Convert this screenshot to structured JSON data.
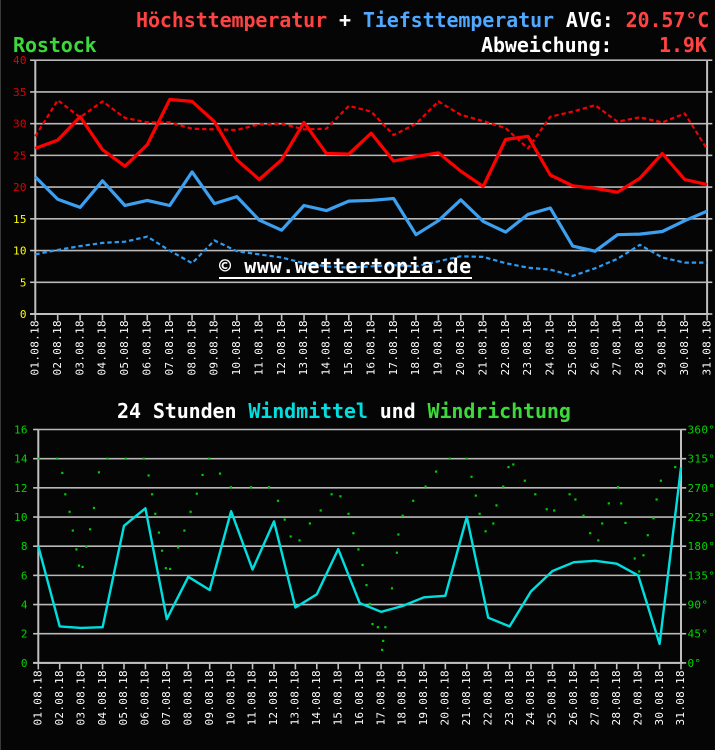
{
  "station": "Rostock",
  "header": {
    "line1": {
      "max_label": "Höchsttemperatur",
      "plus": " + ",
      "min_label": "Tiefsttemperatur",
      "avg_label": " AVG: ",
      "avg_value": "20.57°C"
    },
    "line2": {
      "dev_label": "Abweichung:",
      "dev_value": "1.9K"
    }
  },
  "watermark": "© www.wettertopia.de",
  "colors": {
    "background": "#050505",
    "grid": "#b8b8b8",
    "axis": "#c0c0c0",
    "max_line": "#ff0000",
    "max_dashed_line": "#f40000",
    "min_line": "#3ca0f0",
    "min_dashed_line": "#2e9bf2",
    "wind_line": "#00dfdf",
    "direction_dots": "#00cc00",
    "ylabel_red": "#e00000",
    "ylabel_yellow": "#ffff00",
    "ylabel_green": "#00d400",
    "xlabel_white": "#ffffff",
    "header_red": "#ff4343",
    "header_blue": "#51a8ff",
    "header_green": "#3cd83c",
    "header_cyan": "#00dfdf",
    "header_white": "#ffffff"
  },
  "chart_data": [
    {
      "type": "line",
      "title": "Höchsttemperatur + Tiefsttemperatur",
      "ylabel": "°C",
      "ylim": [
        0,
        40
      ],
      "ytick_step": 5,
      "ylabel_red_from": 20,
      "grid": true,
      "categories": [
        "01.08.18",
        "02.08.18",
        "03.08.18",
        "04.08.18",
        "05.08.18",
        "06.08.18",
        "07.08.18",
        "08.08.18",
        "09.08.18",
        "10.08.18",
        "11.08.18",
        "12.08.18",
        "13.08.18",
        "14.08.18",
        "15.08.18",
        "16.08.18",
        "17.08.18",
        "18.08.18",
        "19.08.18",
        "20.08.18",
        "21.08.18",
        "22.08.18",
        "23.08.18",
        "24.08.18",
        "25.08.18",
        "26.08.18",
        "27.08.18",
        "28.08.18",
        "29.08.18",
        "30.08.18",
        "31.08.18"
      ],
      "series": [
        {
          "name": "Höchsttemperatur",
          "style": "solid",
          "width": 3.2,
          "color": "#ff0000",
          "values": [
            26.1,
            27.4,
            31.1,
            25.9,
            23.3,
            26.7,
            33.8,
            33.5,
            30.3,
            24.3,
            21.2,
            24.3,
            30.2,
            25.3,
            25.2,
            28.5,
            24.1,
            24.8,
            25.4,
            22.5,
            20.1,
            27.5,
            28.0,
            21.9,
            20.2,
            19.8,
            19.2,
            21.4,
            25.3,
            21.2,
            20.4
          ]
        },
        {
          "name": "Höchsttemperatur Vergleich",
          "style": "dashed",
          "width": 2.2,
          "color": "#f40000",
          "values": [
            28.0,
            33.7,
            31.0,
            33.5,
            30.9,
            30.2,
            30.2,
            29.2,
            29.1,
            29.0,
            29.9,
            30.0,
            29.1,
            29.2,
            32.8,
            31.9,
            28.2,
            30.0,
            33.5,
            31.4,
            30.4,
            29.3,
            26.1,
            31.1,
            31.9,
            32.9,
            30.3,
            31.0,
            30.2,
            31.6,
            26.0
          ]
        },
        {
          "name": "Tiefsttemperatur",
          "style": "solid",
          "width": 3.2,
          "color": "#3ca0f0",
          "values": [
            21.6,
            18.1,
            16.8,
            21.0,
            17.1,
            17.9,
            17.1,
            22.4,
            17.4,
            18.5,
            14.8,
            13.2,
            17.1,
            16.3,
            17.8,
            17.9,
            18.2,
            12.5,
            14.7,
            18.0,
            14.6,
            12.9,
            15.7,
            16.7,
            10.7,
            9.9,
            12.5,
            12.6,
            13.0,
            14.7,
            16.2
          ]
        },
        {
          "name": "Tiefsttemperatur Vergleich",
          "style": "dashed",
          "width": 2.2,
          "color": "#2e9bf2",
          "values": [
            9.4,
            10.1,
            10.7,
            11.2,
            11.4,
            12.2,
            10.0,
            8.0,
            11.6,
            9.9,
            9.4,
            8.9,
            8.0,
            7.5,
            7.3,
            7.5,
            7.7,
            7.5,
            8.3,
            9.1,
            9.0,
            8.0,
            7.3,
            7.0,
            6.0,
            7.2,
            8.7,
            10.9,
            8.9,
            8.1,
            8.1
          ]
        }
      ]
    },
    {
      "type": "line+scatter",
      "title_parts": [
        {
          "text": "24 Stunden ",
          "color": "#ffffff"
        },
        {
          "text": "Windmittel",
          "color": "#00dfdf"
        },
        {
          "text": " und ",
          "color": "#ffffff"
        },
        {
          "text": "Windrichtung",
          "color": "#3cd83c"
        }
      ],
      "ylim_left": [
        0,
        16
      ],
      "ytick_step_left": 2,
      "ylim_right": [
        0,
        360
      ],
      "ytick_step_right": 45,
      "grid": true,
      "categories": [
        "01.08.18",
        "02.08.18",
        "03.08.18",
        "04.08.18",
        "05.08.18",
        "06.08.18",
        "07.08.18",
        "08.08.18",
        "09.08.18",
        "10.08.18",
        "11.08.18",
        "12.08.18",
        "13.08.18",
        "14.08.18",
        "15.08.18",
        "16.08.18",
        "17.08.18",
        "18.08.18",
        "19.08.18",
        "20.08.18",
        "21.08.18",
        "22.08.18",
        "23.08.18",
        "24.08.18",
        "25.08.18",
        "26.08.18",
        "27.08.18",
        "28.08.18",
        "29.08.18",
        "30.08.18",
        "31.08.18"
      ],
      "series": [
        {
          "name": "Windmittel",
          "style": "solid",
          "width": 2.4,
          "color": "#00dfdf",
          "values": [
            8.0,
            2.5,
            2.4,
            2.45,
            9.4,
            10.6,
            3.0,
            5.9,
            5.0,
            10.4,
            6.4,
            9.7,
            3.8,
            4.7,
            7.8,
            4.1,
            3.5,
            3.9,
            4.5,
            4.6,
            10.0,
            3.1,
            2.5,
            4.9,
            6.3,
            6.9,
            7.0,
            6.8,
            6.0,
            1.3,
            13.4
          ]
        }
      ],
      "scatter": {
        "name": "Windrichtung",
        "color": "#00cc00",
        "unit": "deg",
        "points": [
          [
            1.02,
            315
          ],
          [
            1.88,
            315
          ],
          [
            2.12,
            293
          ],
          [
            2.26,
            260
          ],
          [
            2.46,
            233
          ],
          [
            2.61,
            204
          ],
          [
            2.78,
            175
          ],
          [
            2.9,
            150
          ],
          [
            3.07,
            148
          ],
          [
            3.24,
            179
          ],
          [
            3.42,
            206
          ],
          [
            3.6,
            239
          ],
          [
            3.83,
            294
          ],
          [
            4.23,
            315
          ],
          [
            5.08,
            315
          ],
          [
            5.92,
            315
          ],
          [
            6.15,
            289
          ],
          [
            6.31,
            260
          ],
          [
            6.46,
            230
          ],
          [
            6.63,
            201
          ],
          [
            6.78,
            173
          ],
          [
            6.95,
            146
          ],
          [
            7.15,
            145
          ],
          [
            7.53,
            178
          ],
          [
            7.82,
            204
          ],
          [
            8.11,
            233
          ],
          [
            8.4,
            261
          ],
          [
            8.67,
            290
          ],
          [
            8.98,
            315
          ],
          [
            9.48,
            292
          ],
          [
            9.99,
            271
          ],
          [
            10.93,
            271
          ],
          [
            11.77,
            271
          ],
          [
            12.19,
            250
          ],
          [
            12.5,
            221
          ],
          [
            12.78,
            195
          ],
          [
            13.19,
            189
          ],
          [
            13.68,
            215
          ],
          [
            14.18,
            235
          ],
          [
            14.69,
            260
          ],
          [
            15.1,
            257
          ],
          [
            15.48,
            230
          ],
          [
            15.71,
            200
          ],
          [
            15.94,
            175
          ],
          [
            16.14,
            151
          ],
          [
            16.32,
            120
          ],
          [
            16.47,
            91
          ],
          [
            16.6,
            60
          ],
          [
            16.85,
            55
          ],
          [
            17.05,
            20
          ],
          [
            17.1,
            34
          ],
          [
            17.2,
            55
          ],
          [
            17.51,
            115
          ],
          [
            17.74,
            170
          ],
          [
            17.81,
            198
          ],
          [
            18.01,
            227
          ],
          [
            18.5,
            250
          ],
          [
            19.08,
            272
          ],
          [
            19.57,
            295
          ],
          [
            20.21,
            315
          ],
          [
            20.99,
            315
          ],
          [
            21.22,
            287
          ],
          [
            21.42,
            258
          ],
          [
            21.6,
            230
          ],
          [
            21.88,
            203
          ],
          [
            22.24,
            215
          ],
          [
            22.39,
            243
          ],
          [
            22.7,
            272
          ],
          [
            22.95,
            302
          ],
          [
            23.17,
            306
          ],
          [
            23.71,
            281
          ],
          [
            24.2,
            260
          ],
          [
            24.73,
            237
          ],
          [
            25.08,
            235
          ],
          [
            25.8,
            260
          ],
          [
            26.07,
            252
          ],
          [
            26.45,
            227
          ],
          [
            26.76,
            200
          ],
          [
            27.14,
            189
          ],
          [
            27.32,
            215
          ],
          [
            27.63,
            246
          ],
          [
            28.06,
            271
          ],
          [
            28.21,
            246
          ],
          [
            28.41,
            216
          ],
          [
            28.84,
            161
          ],
          [
            29.05,
            141
          ],
          [
            29.25,
            166
          ],
          [
            29.45,
            197
          ],
          [
            29.71,
            223
          ],
          [
            29.86,
            252
          ],
          [
            30.06,
            281
          ],
          [
            30.73,
            302
          ]
        ]
      }
    }
  ]
}
